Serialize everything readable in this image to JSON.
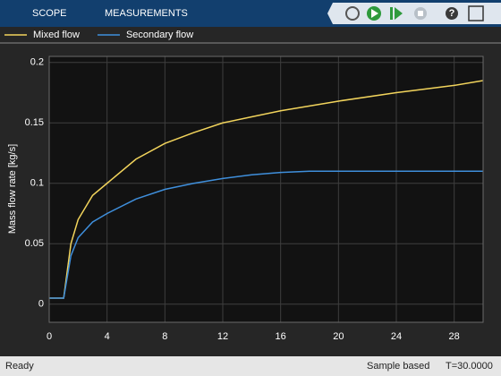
{
  "toolbar": {
    "tabs": [
      "SCOPE",
      "MEASUREMENTS"
    ]
  },
  "chart_data": {
    "type": "line",
    "ylabel": "Mass flow rate [kg/s]",
    "x": [
      0,
      1,
      1.5,
      2,
      3,
      4,
      6,
      8,
      10,
      12,
      14,
      16,
      18,
      20,
      24,
      28,
      30
    ],
    "series": [
      {
        "name": "Mixed flow",
        "color": "#f2d45c",
        "values": [
          0.005,
          0.005,
          0.05,
          0.07,
          0.09,
          0.1,
          0.12,
          0.133,
          0.142,
          0.15,
          0.155,
          0.16,
          0.164,
          0.168,
          0.175,
          0.181,
          0.185
        ]
      },
      {
        "name": "Secondary flow",
        "color": "#3f8fdc",
        "values": [
          0.005,
          0.005,
          0.04,
          0.055,
          0.068,
          0.075,
          0.087,
          0.095,
          0.1,
          0.104,
          0.107,
          0.109,
          0.11,
          0.11,
          0.11,
          0.11,
          0.11
        ]
      }
    ],
    "xlim": [
      0,
      30
    ],
    "xticks": [
      0,
      4,
      8,
      12,
      16,
      20,
      24,
      28
    ],
    "ylim": [
      -0.015,
      0.205
    ],
    "yticks": [
      0,
      0.05,
      0.1,
      0.15,
      0.2
    ],
    "grid": true
  },
  "status_bar": {
    "status": "Ready",
    "mode": "Sample based",
    "time": "T=30.0000"
  }
}
